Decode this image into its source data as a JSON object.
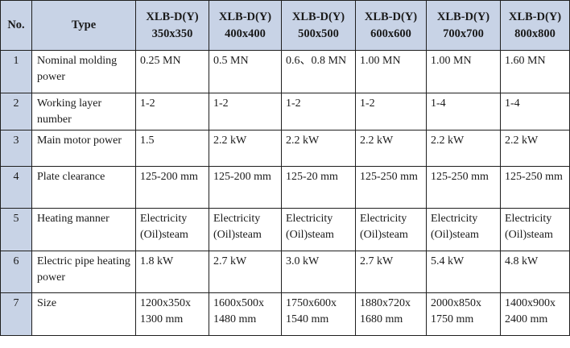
{
  "table": {
    "header": {
      "no": "No.",
      "type": "Type",
      "models": [
        {
          "line1": "XLB-D(Y)",
          "line2": "350x350"
        },
        {
          "line1": "XLB-D(Y)",
          "line2": "400x400"
        },
        {
          "line1": "XLB-D(Y)",
          "line2": "500x500"
        },
        {
          "line1": "XLB-D(Y)",
          "line2": "600x600"
        },
        {
          "line1": "XLB-D(Y)",
          "line2": "700x700"
        },
        {
          "line1": "XLB-D(Y)",
          "line2": "800x800"
        }
      ]
    },
    "rows": [
      {
        "no": "1",
        "type": "Nominal molding power",
        "values": [
          "0.25 MN",
          "0.5 MN",
          "0.6、0.8 MN",
          "1.00 MN",
          "1.00 MN",
          "1.60 MN"
        ]
      },
      {
        "no": "2",
        "type": "Working layer number",
        "values": [
          "1-2",
          "1-2",
          "1-2",
          "1-2",
          "1-4",
          "1-4"
        ]
      },
      {
        "no": "3",
        "type": "Main motor power",
        "values": [
          "1.5",
          "2.2 kW",
          "2.2 kW",
          "2.2 kW",
          "2.2 kW",
          "2.2 kW"
        ]
      },
      {
        "no": "4",
        "type": "Plate clearance",
        "values": [
          "125-200 mm",
          "125-200 mm",
          "125-20 mm",
          "125-250 mm",
          "125-250 mm",
          "125-250 mm"
        ]
      },
      {
        "no": "5",
        "type": "Heating manner",
        "values": [
          "Electricity (Oil)steam",
          "Electricity (Oil)steam",
          "Electricity (Oil)steam",
          "Electricity (Oil)steam",
          "Electricity (Oil)steam",
          "Electricity (Oil)steam"
        ]
      },
      {
        "no": "6",
        "type": "Electric pipe heating power",
        "values": [
          "1.8 kW",
          "2.7 kW",
          "3.0 kW",
          "2.7 kW",
          "5.4 kW",
          "4.8 kW"
        ]
      },
      {
        "no": "7",
        "type": "Size",
        "values": [
          "1200x350x 1300 mm",
          "1600x500x 1480 mm",
          "1750x600x 1540 mm",
          "1880x720x 1680 mm",
          "2000x850x 1750 mm",
          "1400x900x 2400 mm"
        ]
      }
    ]
  },
  "colors": {
    "header_bg": "#c8d3e6",
    "border": "#1f1f1f",
    "text": "#1a1a1a"
  }
}
